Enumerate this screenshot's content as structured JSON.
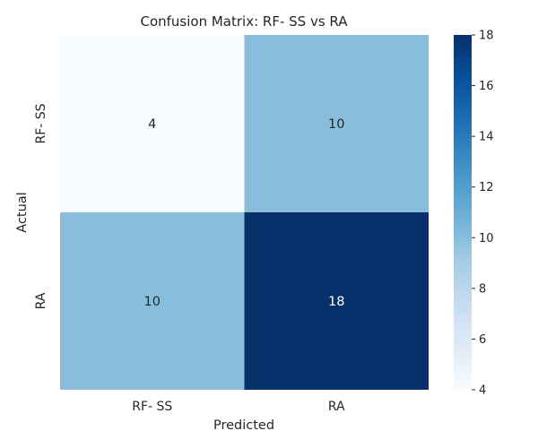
{
  "chart_data": {
    "type": "heatmap",
    "title": "Confusion Matrix: RF- SS vs RA",
    "xlabel": "Predicted",
    "ylabel": "Actual",
    "x_categories": [
      "RF- SS",
      "RA"
    ],
    "y_categories": [
      "RF- SS",
      "RA"
    ],
    "matrix": [
      [
        4,
        10
      ],
      [
        10,
        18
      ]
    ],
    "colorbar": {
      "min": 4,
      "max": 18,
      "ticks": [
        4,
        6,
        8,
        10,
        12,
        14,
        16,
        18
      ],
      "colormap": "Blues"
    },
    "colors": {
      "low": "#f7fbff",
      "mid": "#89bedc",
      "high": "#08306b"
    }
  }
}
